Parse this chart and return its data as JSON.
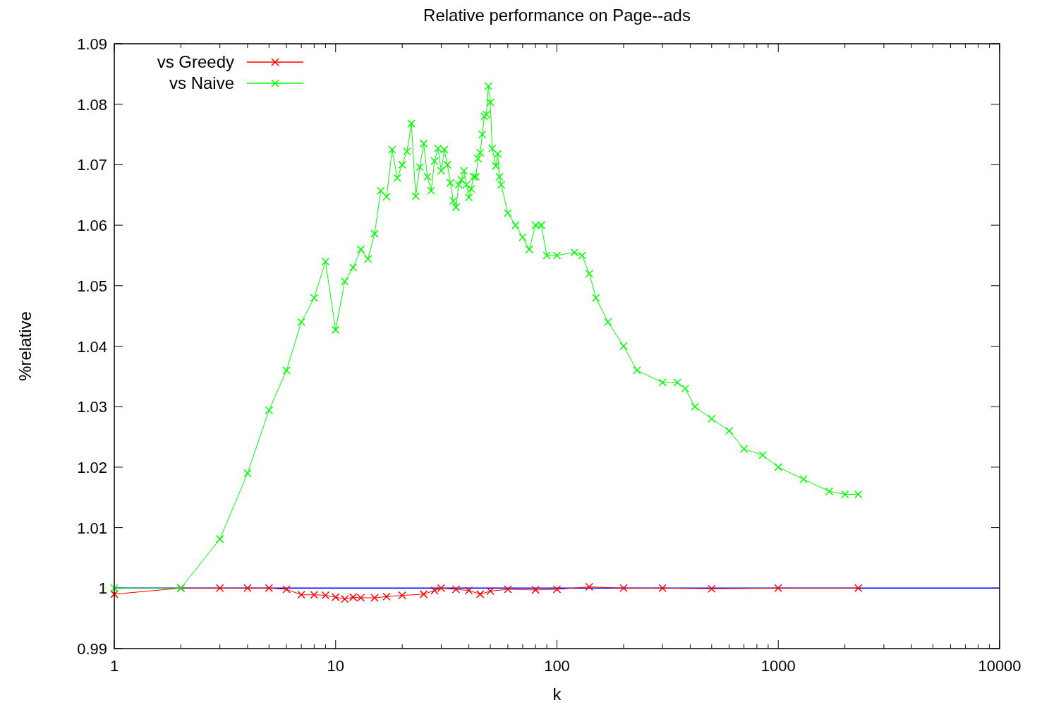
{
  "chart_data": {
    "type": "line",
    "title": "Relative performance on Page--ads",
    "xlabel": "k",
    "ylabel": "%relative",
    "log": "x",
    "xlim": [
      1,
      10000
    ],
    "ylim": [
      0.99,
      1.09
    ],
    "xticks": [
      1,
      {
        "value": 2,
        "label": null
      },
      {
        "value": 3,
        "label": null
      },
      {
        "value": 4,
        "label": null
      },
      {
        "value": 5,
        "label": null
      },
      {
        "value": 6,
        "label": null
      },
      {
        "value": 7,
        "label": null
      },
      {
        "value": 8,
        "label": null
      },
      {
        "value": 9,
        "label": null
      },
      10,
      {
        "value": 20,
        "label": null
      },
      {
        "value": 30,
        "label": null
      },
      {
        "value": 40,
        "label": null
      },
      {
        "value": 50,
        "label": null
      },
      {
        "value": 60,
        "label": null
      },
      {
        "value": 70,
        "label": null
      },
      {
        "value": 80,
        "label": null
      },
      {
        "value": 90,
        "label": null
      },
      100,
      {
        "value": 200,
        "label": null
      },
      {
        "value": 300,
        "label": null
      },
      {
        "value": 400,
        "label": null
      },
      {
        "value": 500,
        "label": null
      },
      {
        "value": 600,
        "label": null
      },
      {
        "value": 700,
        "label": null
      },
      {
        "value": 800,
        "label": null
      },
      {
        "value": 900,
        "label": null
      },
      1000,
      {
        "value": 2000,
        "label": null
      },
      {
        "value": 3000,
        "label": null
      },
      {
        "value": 4000,
        "label": null
      },
      {
        "value": 5000,
        "label": null
      },
      {
        "value": 6000,
        "label": null
      },
      {
        "value": 7000,
        "label": null
      },
      {
        "value": 8000,
        "label": null
      },
      {
        "value": 9000,
        "label": null
      },
      10000
    ],
    "yticks": [
      0.99,
      1,
      1.01,
      1.02,
      1.03,
      1.04,
      1.05,
      1.06,
      1.07,
      1.08,
      1.09
    ],
    "grid": false,
    "legend": "top left",
    "marker": "cross",
    "line_style": "solid",
    "ref_lines": [
      {
        "axis": "y",
        "value": 1,
        "color": "#0000ff"
      }
    ],
    "series": [
      {
        "name": "vs Greedy",
        "color": "#ff0000",
        "x": [
          1,
          2,
          3,
          4,
          5,
          6,
          7,
          8,
          9,
          10,
          11,
          12,
          13,
          15,
          17,
          20,
          25,
          28,
          30,
          35,
          40,
          45,
          50,
          60,
          80,
          100,
          140,
          200,
          300,
          500,
          1000,
          2300
        ],
        "values": [
          0.999,
          1,
          1,
          1,
          1,
          0.9998,
          0.9989,
          0.9989,
          0.9988,
          0.9985,
          0.9982,
          0.9985,
          0.9984,
          0.9984,
          0.9986,
          0.9988,
          0.999,
          0.9996,
          1,
          0.9998,
          0.9996,
          0.999,
          0.9995,
          0.9998,
          0.9997,
          0.9998,
          1.0002,
          1,
          1,
          0.9999,
          1,
          1
        ]
      },
      {
        "name": "vs Naive",
        "color": "#00ff00",
        "x": [
          1,
          2,
          3,
          4,
          5,
          6,
          7,
          8,
          9,
          10,
          11,
          12,
          13,
          14,
          15,
          16,
          17,
          18,
          19,
          20,
          21,
          22,
          23,
          24,
          25,
          26,
          27,
          28,
          29,
          30,
          31,
          32,
          33,
          34,
          35,
          36,
          37,
          38,
          39,
          40,
          41,
          42,
          43,
          44,
          45,
          46,
          47,
          48,
          49,
          50,
          51,
          53,
          54,
          55,
          56,
          60,
          65,
          70,
          75,
          80,
          85,
          90,
          100,
          120,
          130,
          140,
          150,
          170,
          200,
          230,
          300,
          350,
          380,
          420,
          500,
          600,
          700,
          850,
          1000,
          1300,
          1700,
          2000,
          2300
        ],
        "values": [
          1,
          1,
          1.0081,
          1.019,
          1.0294,
          1.036,
          1.044,
          1.048,
          1.054,
          1.0427,
          1.0507,
          1.053,
          1.056,
          1.0544,
          1.0586,
          1.0657,
          1.0647,
          1.0725,
          1.0678,
          1.07,
          1.0722,
          1.0768,
          1.0648,
          1.0696,
          1.0735,
          1.068,
          1.0657,
          1.0706,
          1.0727,
          1.069,
          1.0725,
          1.07,
          1.067,
          1.064,
          1.063,
          1.0667,
          1.0675,
          1.069,
          1.0667,
          1.0646,
          1.066,
          1.068,
          1.068,
          1.071,
          1.072,
          1.075,
          1.078,
          1.0783,
          1.083,
          1.0803,
          1.0727,
          1.0698,
          1.0718,
          1.068,
          1.0667,
          1.062,
          1.06,
          1.058,
          1.056,
          1.06,
          1.06,
          1.055,
          1.055,
          1.0555,
          1.055,
          1.052,
          1.048,
          1.044,
          1.04,
          1.036,
          1.034,
          1.034,
          1.033,
          1.03,
          1.028,
          1.026,
          1.023,
          1.022,
          1.02,
          1.018,
          1.016,
          1.0155,
          1.0155
        ]
      }
    ]
  }
}
